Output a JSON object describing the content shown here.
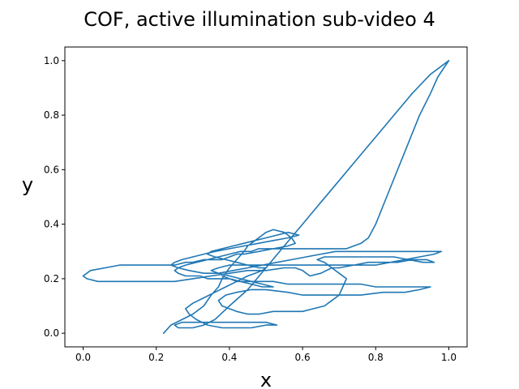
{
  "chart_data": {
    "type": "line",
    "title": "COF, active illumination sub-video 4",
    "xlabel": "x",
    "ylabel": "y",
    "xlim": [
      -0.05,
      1.05
    ],
    "ylim": [
      -0.05,
      1.05
    ],
    "xticks": [
      "0.0",
      "0.2",
      "0.4",
      "0.6",
      "0.8",
      "1.0"
    ],
    "yticks": [
      "0.0",
      "0.2",
      "0.4",
      "0.6",
      "0.8",
      "1.0"
    ],
    "grid": false,
    "color": "#1f77b4",
    "series": [
      {
        "x": [
          0.22,
          0.24,
          0.27,
          0.3,
          0.33,
          0.35,
          0.37,
          0.38,
          0.39,
          0.4,
          0.42,
          0.44,
          0.45,
          0.47,
          0.49,
          0.5,
          0.52,
          0.55,
          0.57,
          0.58,
          0.56,
          0.52,
          0.48,
          0.44,
          0.42,
          0.4,
          0.38,
          0.36,
          0.33,
          0.3,
          0.28,
          0.25,
          0.22,
          0.18,
          0.14,
          0.1,
          0.06,
          0.02,
          0.0,
          0.01,
          0.04,
          0.08,
          0.12,
          0.16,
          0.2,
          0.25,
          0.3,
          0.35,
          0.4,
          0.45,
          0.5,
          0.55,
          0.58,
          0.6,
          0.62,
          0.65,
          0.68,
          0.7,
          0.74,
          0.78,
          0.82,
          0.86,
          0.9,
          0.94,
          0.96,
          0.93,
          0.89,
          0.85,
          0.8,
          0.75,
          0.7,
          0.66,
          0.64,
          0.66,
          0.68,
          0.7,
          0.72,
          0.71,
          0.7,
          0.68,
          0.66,
          0.63,
          0.6,
          0.56,
          0.52,
          0.48,
          0.45,
          0.42,
          0.4,
          0.38,
          0.37,
          0.39,
          0.42,
          0.46,
          0.5,
          0.56,
          0.6,
          0.64,
          0.7,
          0.76,
          0.82,
          0.88,
          0.92,
          0.95,
          0.92,
          0.88,
          0.84,
          0.8,
          0.76,
          0.73,
          0.7,
          0.68,
          0.64,
          0.6,
          0.56,
          0.52,
          0.48,
          0.45,
          0.42,
          0.4,
          0.38,
          0.36,
          0.34,
          0.32,
          0.3,
          0.28,
          0.26,
          0.25,
          0.26,
          0.28,
          0.31,
          0.34,
          0.37,
          0.4,
          0.43,
          0.46,
          0.48,
          0.5,
          0.52,
          0.54,
          0.56,
          0.58,
          0.6,
          0.62,
          0.64,
          0.66,
          0.68,
          0.7,
          0.72,
          0.74,
          0.76,
          0.78,
          0.8,
          0.83,
          0.86,
          0.89,
          0.92,
          0.95,
          0.97,
          0.99,
          1.0,
          0.99,
          0.95,
          0.9,
          0.85,
          0.8,
          0.75,
          0.7,
          0.65,
          0.6,
          0.55,
          0.5,
          0.45,
          0.4,
          0.36,
          0.33,
          0.3,
          0.28,
          0.26,
          0.25,
          0.27,
          0.3,
          0.34,
          0.38,
          0.42,
          0.46,
          0.5,
          0.53,
          0.5,
          0.46,
          0.42,
          0.38,
          0.34,
          0.31,
          0.29,
          0.28,
          0.3,
          0.33,
          0.36,
          0.39,
          0.42,
          0.45,
          0.47,
          0.49,
          0.5,
          0.48,
          0.45,
          0.42,
          0.39,
          0.36,
          0.34,
          0.35,
          0.38,
          0.41,
          0.44,
          0.47,
          0.5,
          0.53,
          0.56,
          0.59,
          0.56,
          0.52,
          0.48,
          0.44,
          0.4,
          0.36,
          0.33,
          0.3,
          0.27,
          0.25,
          0.24,
          0.26,
          0.29,
          0.33,
          0.37,
          0.41,
          0.45,
          0.49,
          0.53,
          0.57,
          0.61,
          0.65,
          0.69,
          0.73,
          0.77,
          0.81,
          0.85,
          0.89,
          0.93,
          0.97,
          0.98,
          0.96,
          0.92,
          0.88,
          0.84,
          0.8,
          0.76,
          0.72,
          0.68,
          0.64,
          0.6,
          0.56,
          0.52,
          0.48,
          0.44,
          0.4,
          0.37,
          0.35,
          0.37,
          0.4,
          0.43,
          0.46,
          0.49,
          0.52,
          0.49,
          0.46,
          0.43,
          0.4,
          0.38
        ],
        "y": [
          0.0,
          0.03,
          0.05,
          0.07,
          0.1,
          0.14,
          0.17,
          0.2,
          0.22,
          0.24,
          0.27,
          0.3,
          0.32,
          0.34,
          0.36,
          0.37,
          0.38,
          0.37,
          0.35,
          0.33,
          0.32,
          0.31,
          0.3,
          0.29,
          0.29,
          0.28,
          0.27,
          0.27,
          0.27,
          0.26,
          0.26,
          0.25,
          0.25,
          0.25,
          0.25,
          0.25,
          0.24,
          0.23,
          0.21,
          0.2,
          0.19,
          0.19,
          0.19,
          0.19,
          0.19,
          0.19,
          0.2,
          0.21,
          0.22,
          0.23,
          0.23,
          0.24,
          0.24,
          0.23,
          0.21,
          0.22,
          0.24,
          0.24,
          0.25,
          0.26,
          0.26,
          0.26,
          0.27,
          0.27,
          0.26,
          0.26,
          0.27,
          0.28,
          0.28,
          0.28,
          0.28,
          0.28,
          0.27,
          0.26,
          0.24,
          0.22,
          0.2,
          0.17,
          0.14,
          0.12,
          0.1,
          0.09,
          0.08,
          0.08,
          0.08,
          0.07,
          0.07,
          0.08,
          0.09,
          0.1,
          0.12,
          0.14,
          0.15,
          0.16,
          0.16,
          0.15,
          0.14,
          0.14,
          0.14,
          0.14,
          0.15,
          0.15,
          0.16,
          0.17,
          0.17,
          0.17,
          0.17,
          0.17,
          0.18,
          0.18,
          0.18,
          0.18,
          0.18,
          0.18,
          0.18,
          0.19,
          0.19,
          0.19,
          0.19,
          0.2,
          0.2,
          0.2,
          0.2,
          0.21,
          0.21,
          0.21,
          0.22,
          0.23,
          0.24,
          0.25,
          0.26,
          0.27,
          0.28,
          0.29,
          0.3,
          0.3,
          0.31,
          0.31,
          0.31,
          0.31,
          0.31,
          0.31,
          0.31,
          0.31,
          0.31,
          0.31,
          0.31,
          0.31,
          0.31,
          0.32,
          0.33,
          0.35,
          0.4,
          0.5,
          0.6,
          0.7,
          0.8,
          0.88,
          0.94,
          0.98,
          1.0,
          0.99,
          0.95,
          0.88,
          0.8,
          0.72,
          0.64,
          0.56,
          0.48,
          0.4,
          0.32,
          0.24,
          0.16,
          0.1,
          0.05,
          0.03,
          0.02,
          0.02,
          0.02,
          0.03,
          0.04,
          0.04,
          0.04,
          0.04,
          0.04,
          0.04,
          0.04,
          0.03,
          0.03,
          0.02,
          0.02,
          0.02,
          0.03,
          0.05,
          0.07,
          0.09,
          0.11,
          0.13,
          0.15,
          0.17,
          0.19,
          0.21,
          0.22,
          0.23,
          0.24,
          0.24,
          0.25,
          0.26,
          0.27,
          0.28,
          0.29,
          0.3,
          0.31,
          0.32,
          0.33,
          0.34,
          0.35,
          0.36,
          0.37,
          0.36,
          0.35,
          0.34,
          0.33,
          0.32,
          0.31,
          0.3,
          0.29,
          0.28,
          0.27,
          0.26,
          0.25,
          0.24,
          0.23,
          0.22,
          0.22,
          0.23,
          0.24,
          0.25,
          0.26,
          0.27,
          0.28,
          0.29,
          0.3,
          0.3,
          0.3,
          0.3,
          0.3,
          0.3,
          0.3,
          0.3,
          0.3,
          0.29,
          0.28,
          0.27,
          0.26,
          0.25,
          0.25,
          0.25,
          0.25,
          0.25,
          0.25,
          0.25,
          0.25,
          0.25,
          0.25,
          0.25,
          0.24,
          0.23,
          0.22,
          0.21,
          0.2,
          0.19,
          0.18,
          0.17,
          0.17,
          0.18,
          0.19,
          0.2,
          0.21
        ]
      }
    ]
  }
}
